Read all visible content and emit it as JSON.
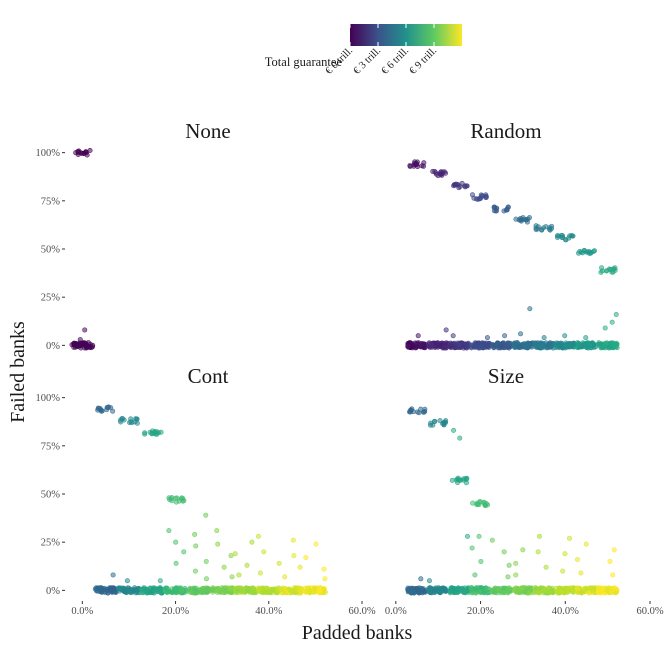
{
  "chart_data": {
    "type": "scatter",
    "xlabel": "Padded banks",
    "ylabel": "Failed banks",
    "xlim": [
      -0.035,
      0.6
    ],
    "ylim": [
      -0.05,
      1.05
    ],
    "x_ticks": [
      0,
      0.2,
      0.4,
      0.6
    ],
    "x_tick_labels": [
      "0.0%",
      "20.0%",
      "40.0%",
      "60.0%"
    ],
    "y_ticks": [
      0,
      0.25,
      0.5,
      0.75,
      1.0
    ],
    "y_tick_labels": [
      "0%",
      "25%",
      "50%",
      "75%",
      "100%"
    ],
    "legend": {
      "title": "Total guarantee",
      "placement": "top",
      "range": [
        0,
        12
      ],
      "tick_values": [
        0,
        3,
        6,
        9
      ],
      "tick_labels": [
        "€ 0 trill.",
        "€ 3 trill.",
        "€ 6 trill.",
        "€ 9 trill."
      ]
    },
    "panels": [
      {
        "title": "None",
        "groups": [
          {
            "x": 0.0,
            "guarantee": 0.0,
            "failed_high": 1.0,
            "failed_outliers": [
              0.08,
              0.03
            ]
          }
        ]
      },
      {
        "title": "Random",
        "groups": [
          {
            "x": 0.05,
            "guarantee": 0.5,
            "failed_high": 0.94,
            "failed_outliers": [
              0.05
            ]
          },
          {
            "x": 0.1,
            "guarantee": 1.2,
            "failed_high": 0.89,
            "failed_outliers": [
              0.08
            ]
          },
          {
            "x": 0.15,
            "guarantee": 1.9,
            "failed_high": 0.83,
            "failed_outliers": [
              0.05
            ]
          },
          {
            "x": 0.2,
            "guarantee": 2.7,
            "failed_high": 0.77,
            "failed_outliers": [
              0.04
            ]
          },
          {
            "x": 0.25,
            "guarantee": 3.4,
            "failed_high": 0.71,
            "failed_outliers": [
              0.05
            ]
          },
          {
            "x": 0.3,
            "guarantee": 4.2,
            "failed_high": 0.65,
            "failed_outliers": [
              0.19,
              0.06
            ]
          },
          {
            "x": 0.35,
            "guarantee": 4.9,
            "failed_high": 0.61,
            "failed_outliers": [
              0.04
            ]
          },
          {
            "x": 0.4,
            "guarantee": 5.7,
            "failed_high": 0.56,
            "failed_outliers": [
              0.05
            ]
          },
          {
            "x": 0.45,
            "guarantee": 6.4,
            "failed_high": 0.49,
            "failed_outliers": [
              0.04
            ]
          },
          {
            "x": 0.5,
            "guarantee": 7.2,
            "failed_high": 0.39,
            "failed_outliers": [
              0.16,
              0.12,
              0.09
            ]
          }
        ]
      },
      {
        "title": "Cont",
        "groups": [
          {
            "x": 0.05,
            "guarantee": 4.0,
            "failed_high": 0.94,
            "failed_outliers": [
              0.08
            ]
          },
          {
            "x": 0.1,
            "guarantee": 5.6,
            "failed_high": 0.88,
            "failed_outliers": [
              0.05
            ]
          },
          {
            "x": 0.15,
            "guarantee": 7.0,
            "failed_high": 0.82,
            "failed_outliers": [
              0.05
            ]
          },
          {
            "x": 0.2,
            "guarantee": 8.3,
            "failed_high": 0.47,
            "failed_outliers": [
              0.31,
              0.25,
              0.2,
              0.14
            ]
          },
          {
            "x": 0.25,
            "guarantee": 9.0,
            "failed_high": null,
            "failed_outliers": [
              0.39,
              0.29,
              0.23,
              0.15,
              0.1,
              0.06
            ]
          },
          {
            "x": 0.3,
            "guarantee": 9.6,
            "failed_high": null,
            "failed_outliers": [
              0.31,
              0.24,
              0.18,
              0.12,
              0.07
            ]
          },
          {
            "x": 0.35,
            "guarantee": 10.2,
            "failed_high": null,
            "failed_outliers": [
              0.25,
              0.19,
              0.13,
              0.08
            ]
          },
          {
            "x": 0.4,
            "guarantee": 10.8,
            "failed_high": null,
            "failed_outliers": [
              0.28,
              0.2,
              0.14,
              0.09
            ]
          },
          {
            "x": 0.45,
            "guarantee": 11.3,
            "failed_high": null,
            "failed_outliers": [
              0.26,
              0.18,
              0.12,
              0.07
            ]
          },
          {
            "x": 0.5,
            "guarantee": 11.8,
            "failed_high": null,
            "failed_outliers": [
              0.24,
              0.17,
              0.11,
              0.06
            ]
          }
        ]
      },
      {
        "title": "Size",
        "groups": [
          {
            "x": 0.05,
            "guarantee": 4.0,
            "failed_high": 0.93,
            "failed_outliers": [
              0.06
            ]
          },
          {
            "x": 0.1,
            "guarantee": 5.5,
            "failed_high": 0.87,
            "failed_outliers": [
              0.05
            ]
          },
          {
            "x": 0.15,
            "guarantee": 7.0,
            "failed_high": 0.57,
            "failed_outliers": [
              0.83,
              0.79,
              0.28
            ]
          },
          {
            "x": 0.2,
            "guarantee": 8.3,
            "failed_high": 0.45,
            "failed_outliers": [
              0.28,
              0.22,
              0.15,
              0.08
            ]
          },
          {
            "x": 0.25,
            "guarantee": 9.0,
            "failed_high": null,
            "failed_outliers": [
              0.26,
              0.2,
              0.13,
              0.07
            ]
          },
          {
            "x": 0.3,
            "guarantee": 9.6,
            "failed_high": null,
            "failed_outliers": [
              0.21,
              0.14,
              0.08
            ]
          },
          {
            "x": 0.35,
            "guarantee": 10.2,
            "failed_high": null,
            "failed_outliers": [
              0.28,
              0.2,
              0.12
            ]
          },
          {
            "x": 0.4,
            "guarantee": 10.8,
            "failed_high": null,
            "failed_outliers": [
              0.27,
              0.19,
              0.1
            ]
          },
          {
            "x": 0.45,
            "guarantee": 11.3,
            "failed_high": null,
            "failed_outliers": [
              0.24,
              0.16,
              0.09
            ]
          },
          {
            "x": 0.5,
            "guarantee": 11.8,
            "failed_high": null,
            "failed_outliers": [
              0.21,
              0.15,
              0.08
            ]
          }
        ]
      }
    ]
  }
}
